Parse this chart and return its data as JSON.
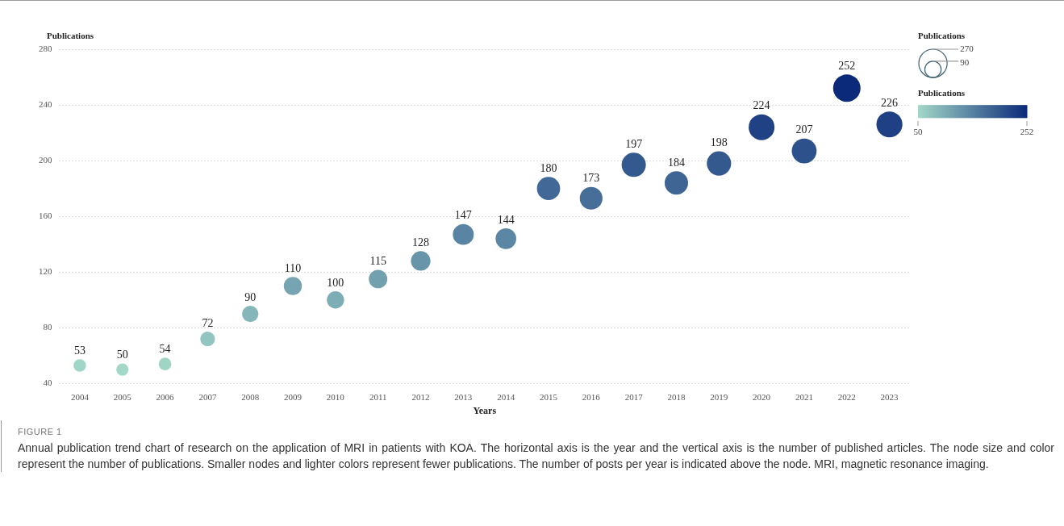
{
  "chart_data": {
    "type": "bubble",
    "xlabel": "Years",
    "ylabel": "Publications",
    "legend_title": "Publications",
    "clabel": "Publications",
    "categories": [
      "2004",
      "2005",
      "2006",
      "2007",
      "2008",
      "2009",
      "2010",
      "2011",
      "2012",
      "2013",
      "2014",
      "2015",
      "2016",
      "2017",
      "2018",
      "2019",
      "2020",
      "2021",
      "2022",
      "2023"
    ],
    "values": [
      53,
      50,
      54,
      72,
      90,
      110,
      100,
      115,
      128,
      147,
      144,
      180,
      173,
      197,
      184,
      198,
      224,
      207,
      252,
      226
    ],
    "sizes": [
      53,
      50,
      54,
      72,
      90,
      110,
      100,
      115,
      128,
      147,
      144,
      180,
      173,
      197,
      184,
      198,
      224,
      207,
      252,
      226
    ],
    "cvalues": [
      53,
      50,
      54,
      72,
      90,
      110,
      100,
      115,
      128,
      147,
      144,
      180,
      173,
      197,
      184,
      198,
      224,
      207,
      252,
      226
    ],
    "colors": [
      "#a1d5c7",
      "#a3d8c8",
      "#a0d5c6",
      "#92c5bf",
      "#85b6b9",
      "#76a4b1",
      "#7dadb5",
      "#72a0af",
      "#6895aa",
      "#5a84a3",
      "#5c87a4",
      "#416896",
      "#466e99",
      "#34598f",
      "#3e6594",
      "#34598f",
      "#204285",
      "#2d518b",
      "#0b2a7a",
      "#1f4084"
    ],
    "size_legend": [
      270,
      90
    ],
    "clim": [
      50,
      252
    ],
    "cticks": [
      50,
      252
    ],
    "ylim": [
      40,
      280
    ],
    "yticks": [
      40,
      80,
      120,
      160,
      200,
      240,
      280
    ],
    "grid": "y",
    "data_labels": true,
    "annotations": [
      "FIGURE 1",
      "Annual publication trend chart of research on the application of MRI in patients with KOA. The horizontal axis is the year and the vertical axis is the number of published articles. The node size and color represent the number of publications. Smaller nodes and lighter colors represent fewer publications. The number of posts per year is indicated above the node. MRI, magnetic resonance imaging."
    ]
  }
}
